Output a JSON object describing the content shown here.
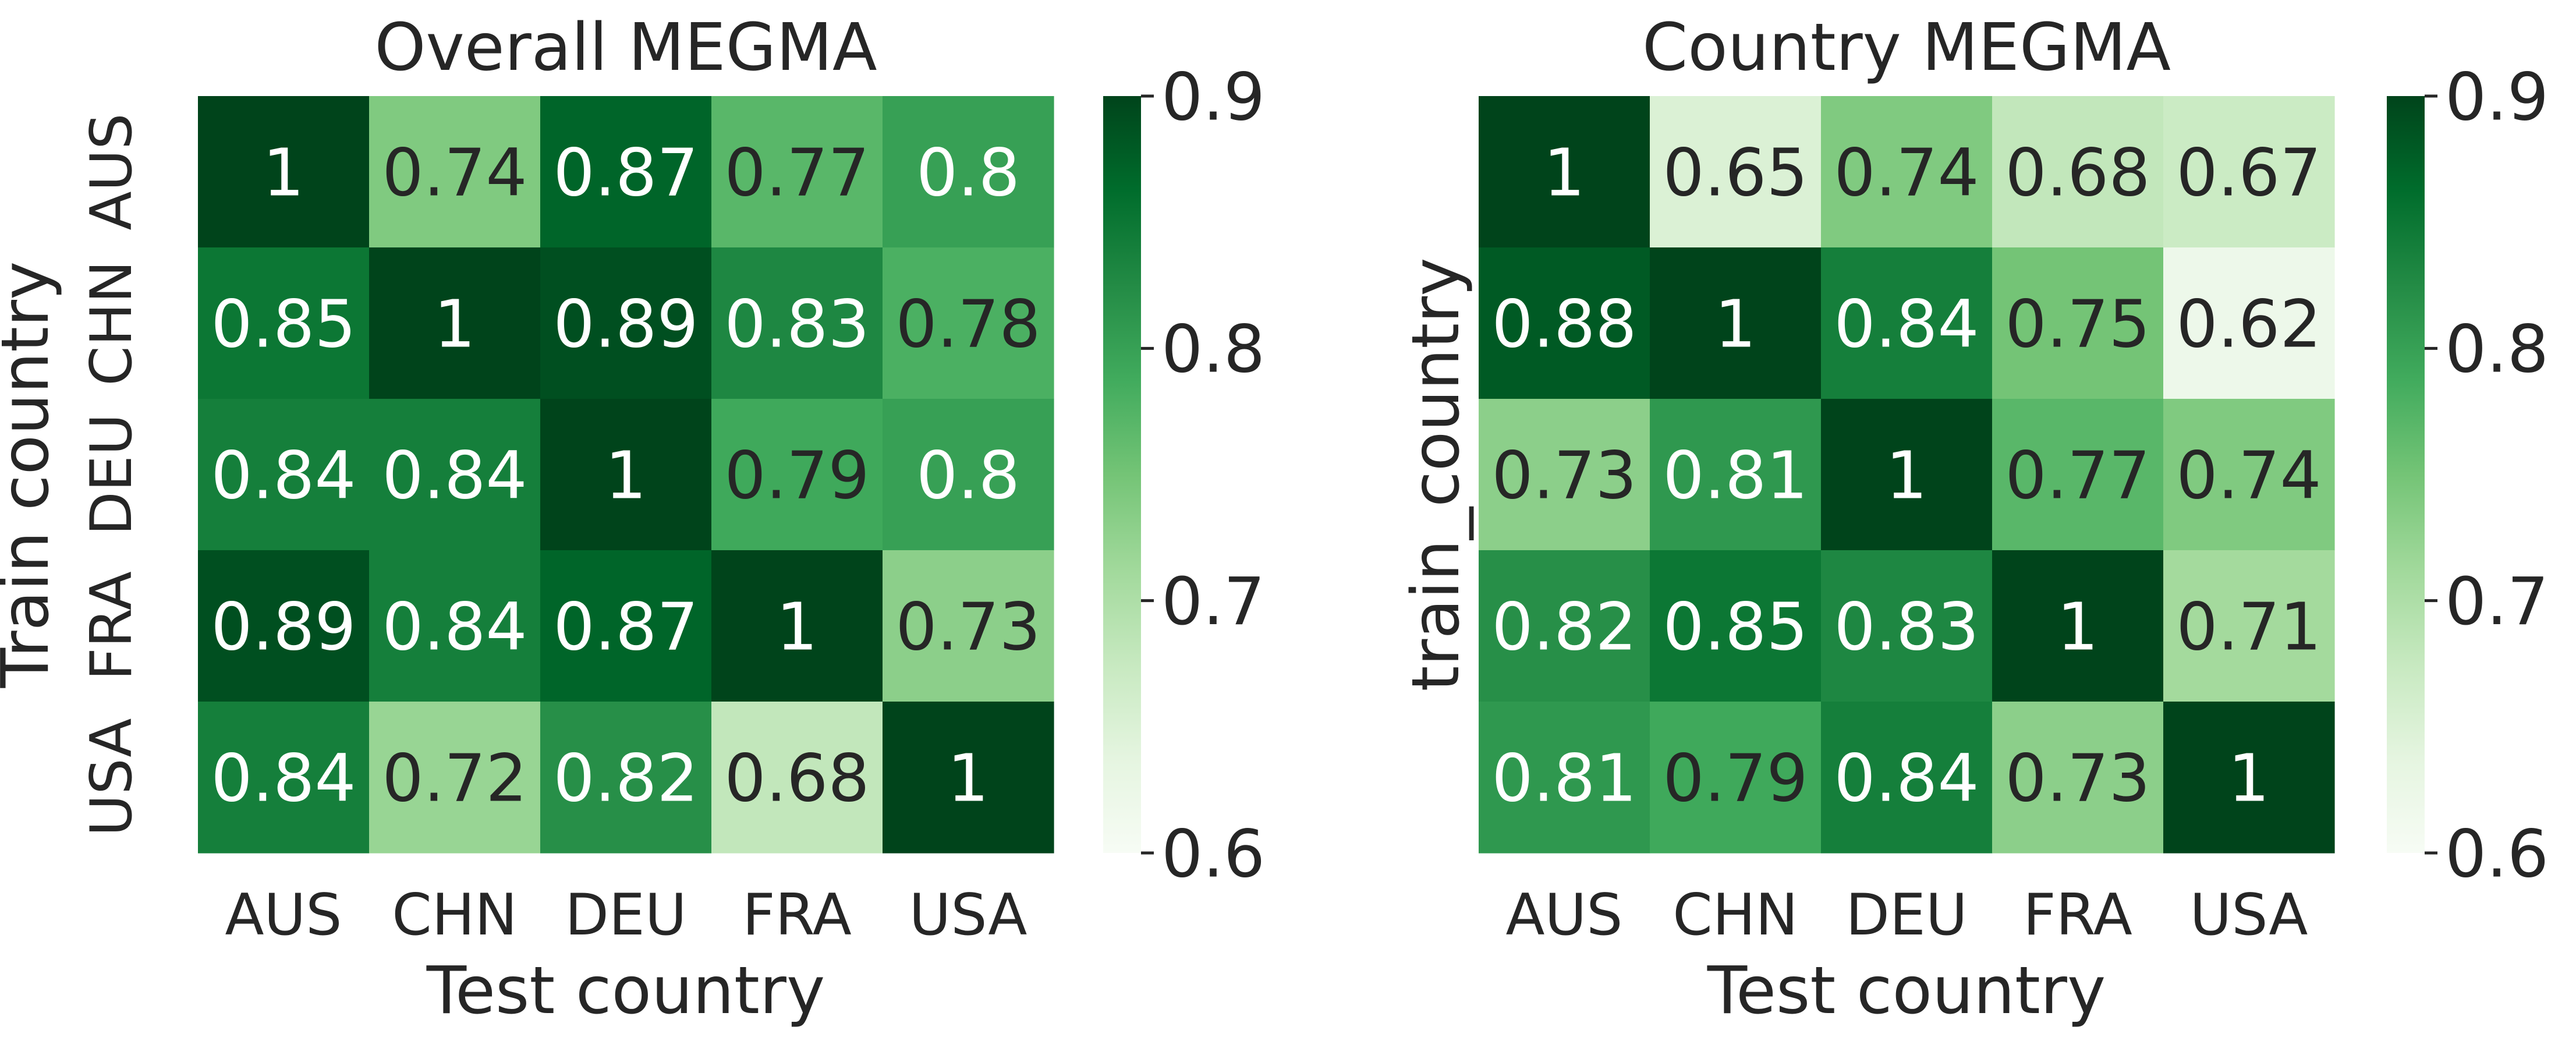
{
  "chart_data": [
    {
      "type": "heatmap",
      "title": "Overall MEGMA",
      "xlabel": "Test country",
      "ylabel": "Train country",
      "x_categories": [
        "AUS",
        "CHN",
        "DEU",
        "FRA",
        "USA"
      ],
      "y_categories": [
        "AUS",
        "CHN",
        "DEU",
        "FRA",
        "USA"
      ],
      "values": [
        [
          1,
          0.74,
          0.87,
          0.77,
          0.8
        ],
        [
          0.85,
          1,
          0.89,
          0.83,
          0.78
        ],
        [
          0.84,
          0.84,
          1,
          0.79,
          0.8
        ],
        [
          0.89,
          0.84,
          0.87,
          1,
          0.73
        ],
        [
          0.84,
          0.72,
          0.82,
          0.68,
          1
        ]
      ],
      "colormap": "Greens",
      "vmin": 0.6,
      "vmax": 0.9,
      "colorbar_ticks": [
        "0.6",
        "0.7",
        "0.8",
        "0.9"
      ],
      "show_y_ticklabels": true
    },
    {
      "type": "heatmap",
      "title": "Country MEGMA",
      "xlabel": "Test country",
      "ylabel": "train_country",
      "x_categories": [
        "AUS",
        "CHN",
        "DEU",
        "FRA",
        "USA"
      ],
      "y_categories": [],
      "values": [
        [
          1,
          0.65,
          0.74,
          0.68,
          0.67
        ],
        [
          0.88,
          1,
          0.84,
          0.75,
          0.62
        ],
        [
          0.73,
          0.81,
          1,
          0.77,
          0.74
        ],
        [
          0.82,
          0.85,
          0.83,
          1,
          0.71
        ],
        [
          0.81,
          0.79,
          0.84,
          0.73,
          1
        ]
      ],
      "colormap": "Greens",
      "vmin": 0.6,
      "vmax": 0.9,
      "colorbar_ticks": [
        "0.6",
        "0.7",
        "0.8",
        "0.9"
      ],
      "show_y_ticklabels": false
    }
  ]
}
